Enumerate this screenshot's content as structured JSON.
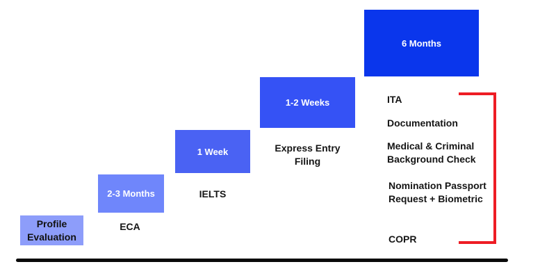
{
  "stages": [
    {
      "block_text": "Profile Evaluation",
      "label": ""
    },
    {
      "block_text": "2-3 Months",
      "label": "ECA"
    },
    {
      "block_text": "1 Week",
      "label": "IELTS"
    },
    {
      "block_text": "1-2 Weeks",
      "label": "Express Entry Filing"
    },
    {
      "block_text": "6 Months",
      "label": ""
    }
  ],
  "final_steps": [
    "ITA",
    "Documentation",
    "Medical & Criminal Background Check",
    "Nomination Passport Request + Biometric",
    "COPR"
  ],
  "colors": {
    "block_1": "#8d9dfa",
    "block_2": "#6f86fb",
    "block_3": "#4a62f3",
    "block_4": "#3552f5",
    "block_5": "#0a36ec",
    "bracket": "#ee1c24",
    "baseline": "#0a0a0a"
  }
}
